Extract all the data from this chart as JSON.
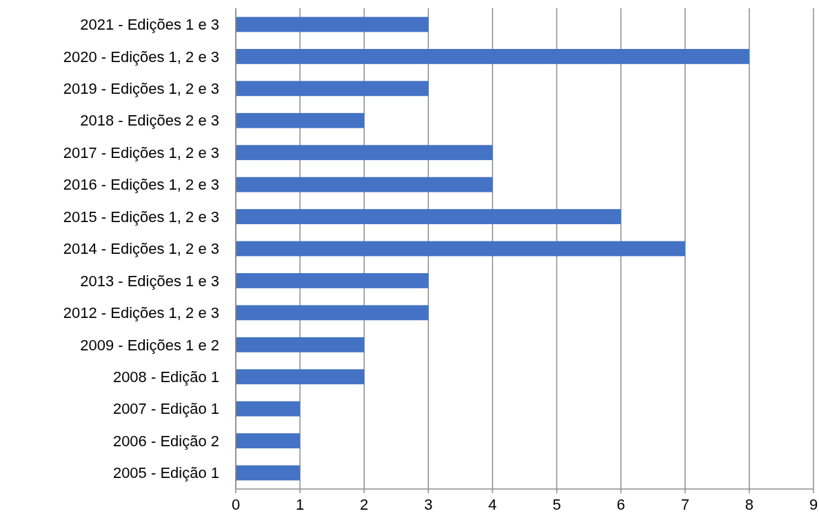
{
  "chart_data": {
    "type": "bar",
    "orientation": "horizontal",
    "categories": [
      "2021 - Edições 1 e 3",
      "2020 - Edições 1, 2 e 3",
      "2019 - Edições 1, 2 e 3",
      "2018 - Edições 2 e 3",
      "2017 - Edições 1, 2 e 3",
      "2016 - Edições 1, 2 e 3",
      "2015 - Edições 1, 2 e 3",
      "2014 - Edições 1, 2 e 3",
      "2013 - Edições 1 e 3",
      "2012 - Edições 1, 2 e 3",
      "2009 - Edições 1 e 2",
      "2008 - Edição 1",
      "2007 - Edição 1",
      "2006 - Edição 2",
      "2005 - Edição 1"
    ],
    "values": [
      3,
      8,
      3,
      2,
      4,
      4,
      6,
      7,
      3,
      3,
      2,
      2,
      1,
      1,
      1
    ],
    "color": "#4472c4",
    "xlim": [
      0,
      9
    ],
    "xticks": [
      0,
      1,
      2,
      3,
      4,
      5,
      6,
      7,
      8,
      9
    ],
    "grid": "x"
  }
}
